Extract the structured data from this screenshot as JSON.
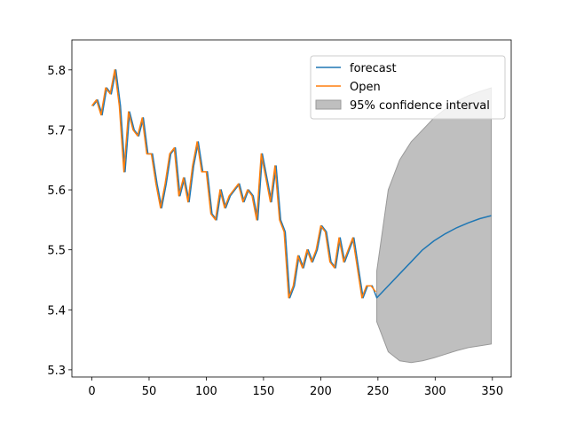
{
  "chart_data": {
    "type": "line",
    "legend": "upper right",
    "xlim": [
      -17.45,
      366.45
    ],
    "ylim": [
      5.288,
      5.85
    ],
    "xticks": [
      0,
      50,
      100,
      150,
      200,
      250,
      300,
      350
    ],
    "yticks": [
      5.3,
      5.4,
      5.5,
      5.6,
      5.7,
      5.8
    ],
    "series": [
      {
        "name": "forecast",
        "color": "#1f77b4",
        "x": [
          1,
          5,
          9,
          13,
          17,
          21,
          25,
          29,
          33,
          37,
          41,
          45,
          49,
          53,
          57,
          61,
          65,
          69,
          73,
          77,
          81,
          85,
          89,
          93,
          97,
          101,
          105,
          109,
          113,
          117,
          121,
          125,
          129,
          133,
          137,
          141,
          145,
          149,
          153,
          157,
          161,
          165,
          169,
          173,
          177,
          181,
          185,
          189,
          193,
          197,
          201,
          205,
          209,
          213,
          217,
          221,
          225,
          229,
          233,
          237,
          241,
          245,
          249,
          259,
          269,
          279,
          289,
          299,
          309,
          319,
          329,
          339,
          349
        ],
        "values": [
          5.74,
          5.75,
          5.725,
          5.77,
          5.76,
          5.8,
          5.74,
          5.63,
          5.73,
          5.7,
          5.69,
          5.72,
          5.66,
          5.66,
          5.61,
          5.57,
          5.61,
          5.66,
          5.67,
          5.59,
          5.62,
          5.58,
          5.64,
          5.68,
          5.63,
          5.63,
          5.56,
          5.55,
          5.6,
          5.57,
          5.59,
          5.6,
          5.61,
          5.58,
          5.6,
          5.59,
          5.55,
          5.66,
          5.62,
          5.58,
          5.64,
          5.55,
          5.53,
          5.42,
          5.44,
          5.49,
          5.47,
          5.5,
          5.48,
          5.5,
          5.54,
          5.53,
          5.48,
          5.47,
          5.52,
          5.48,
          5.5,
          5.52,
          5.47,
          5.42,
          5.44,
          5.44,
          5.42,
          5.44,
          5.46,
          5.48,
          5.5,
          5.515,
          5.527,
          5.537,
          5.545,
          5.552,
          5.557
        ]
      },
      {
        "name": "Open",
        "color": "#ff7f0e",
        "x": [
          0,
          4,
          8,
          12,
          16,
          20,
          24,
          28,
          32,
          36,
          40,
          44,
          48,
          52,
          56,
          60,
          64,
          68,
          72,
          76,
          80,
          84,
          88,
          92,
          96,
          100,
          104,
          108,
          112,
          116,
          120,
          124,
          128,
          132,
          136,
          140,
          144,
          148,
          152,
          156,
          160,
          164,
          168,
          172,
          176,
          180,
          184,
          188,
          192,
          196,
          200,
          204,
          208,
          212,
          216,
          220,
          224,
          228,
          232,
          236,
          240,
          244,
          248
        ],
        "values": [
          5.74,
          5.75,
          5.725,
          5.77,
          5.76,
          5.8,
          5.74,
          5.63,
          5.73,
          5.7,
          5.69,
          5.72,
          5.66,
          5.66,
          5.61,
          5.57,
          5.61,
          5.66,
          5.67,
          5.59,
          5.62,
          5.58,
          5.64,
          5.68,
          5.63,
          5.63,
          5.56,
          5.55,
          5.6,
          5.57,
          5.59,
          5.6,
          5.61,
          5.58,
          5.6,
          5.59,
          5.55,
          5.66,
          5.62,
          5.58,
          5.64,
          5.55,
          5.53,
          5.42,
          5.44,
          5.49,
          5.47,
          5.5,
          5.48,
          5.5,
          5.54,
          5.53,
          5.48,
          5.47,
          5.52,
          5.48,
          5.5,
          5.52,
          5.47,
          5.42,
          5.44,
          5.44,
          5.43
        ]
      }
    ],
    "interval": {
      "name": "95% confidence interval",
      "color": "#bfbfbf",
      "x": [
        249,
        259,
        269,
        279,
        289,
        299,
        309,
        319,
        329,
        339,
        349
      ],
      "lower": [
        5.38,
        5.33,
        5.315,
        5.312,
        5.315,
        5.32,
        5.326,
        5.332,
        5.337,
        5.34,
        5.343
      ],
      "upper": [
        5.465,
        5.6,
        5.65,
        5.68,
        5.7,
        5.72,
        5.735,
        5.748,
        5.757,
        5.764,
        5.77
      ]
    }
  }
}
